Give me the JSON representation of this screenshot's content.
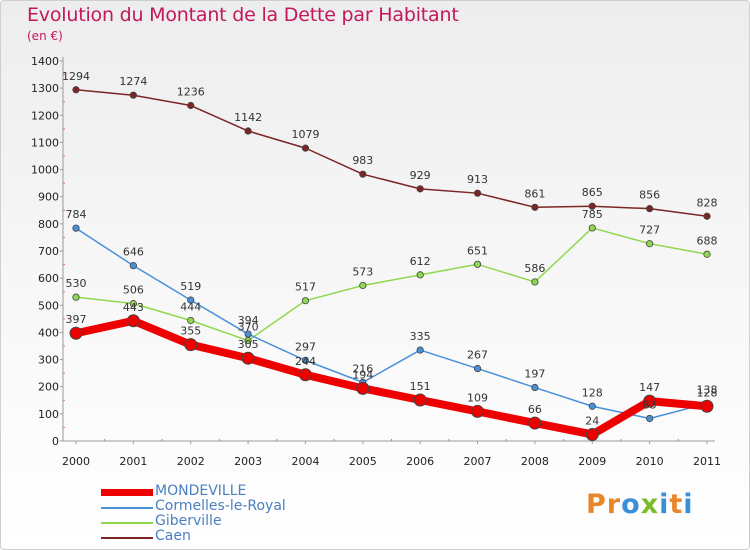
{
  "header": {
    "title": "Evolution du Montant de la Dette par Habitant",
    "unit": "(en €)"
  },
  "logo": {
    "text": "Proxiti",
    "colors": [
      "#e8862c",
      "#e8862c",
      "#3a8fd9",
      "#7dbb2c",
      "#3a8fd9",
      "#e8862c",
      "#3a8fd9"
    ]
  },
  "chart_data": {
    "type": "line",
    "title": "Evolution du Montant de la Dette par Habitant",
    "subtitle": "(en €)",
    "x": [
      "2000",
      "2001",
      "2002",
      "2003",
      "2004",
      "2005",
      "2006",
      "2007",
      "2008",
      "2009",
      "2010",
      "2011"
    ],
    "ylim": [
      0,
      1400
    ],
    "yticks": [
      0,
      100,
      200,
      300,
      400,
      500,
      600,
      700,
      800,
      900,
      1000,
      1100,
      1200,
      1300,
      1400
    ],
    "grid": false,
    "legend_position": "bottom-left",
    "series": [
      {
        "name": "MONDEVILLE",
        "color": "#ee0000",
        "emphasis": true,
        "values": [
          397,
          443,
          355,
          305,
          244,
          194,
          151,
          109,
          66,
          24,
          147,
          128
        ],
        "labels": [
          "397",
          "443",
          "355",
          "305",
          "244",
          "194",
          "151",
          "109",
          "66",
          "24",
          "147",
          "128"
        ]
      },
      {
        "name": "Cormelles-le-Royal",
        "color": "#4a90d9",
        "emphasis": false,
        "values": [
          784,
          646,
          519,
          394,
          297,
          216,
          335,
          267,
          197,
          128,
          83,
          138
        ],
        "labels": [
          "784",
          "646",
          "519",
          "394",
          "297",
          "216",
          "335",
          "267",
          "197",
          "128",
          "83",
          "138"
        ]
      },
      {
        "name": "Giberville",
        "color": "#90d850",
        "emphasis": false,
        "values": [
          530,
          506,
          444,
          370,
          517,
          573,
          612,
          651,
          586,
          785,
          727,
          688
        ],
        "labels": [
          "530",
          "506",
          "444",
          "370",
          "517",
          "573",
          "612",
          "651",
          "586",
          "785",
          "727",
          "688"
        ]
      },
      {
        "name": "Caen",
        "color": "#7b2525",
        "emphasis": false,
        "values": [
          1294,
          1274,
          1236,
          1142,
          1079,
          983,
          929,
          913,
          861,
          865,
          856,
          828
        ],
        "labels": [
          "1294",
          "1274",
          "1236",
          "1142",
          "1079",
          "983",
          "929",
          "913",
          "861",
          "865",
          "856",
          "828"
        ]
      }
    ]
  }
}
